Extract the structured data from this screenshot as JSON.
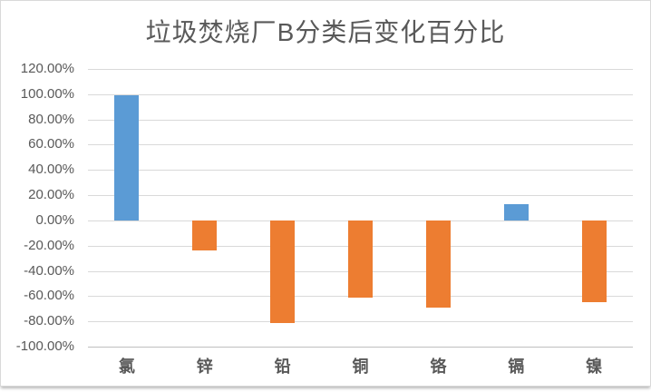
{
  "title": "垃圾焚烧厂B分类后变化百分比",
  "colors": {
    "positive_bar": "#5B9BD5",
    "negative_bar": "#ED7D31",
    "gridline": "#D9D9D9",
    "axis_line": "#BFBFBF",
    "text": "#595959",
    "frame_border": "#D9D9D9"
  },
  "chart_data": {
    "type": "bar",
    "title": "垃圾焚烧厂B分类后变化百分比",
    "categories": [
      "氯",
      "锌",
      "铅",
      "铜",
      "铬",
      "镉",
      "镍"
    ],
    "values": [
      99,
      -24,
      -81,
      -61,
      -69,
      13,
      -65
    ],
    "unit": "%",
    "xlabel": "",
    "ylabel": "",
    "ylim": [
      -100,
      120
    ],
    "ytick_step": 20,
    "ytick_labels": [
      "120.00%",
      "100.00%",
      "80.00%",
      "60.00%",
      "40.00%",
      "20.00%",
      "0.00%",
      "-20.00%",
      "-40.00%",
      "-60.00%",
      "-80.00%",
      "-100.00%"
    ],
    "grid": true,
    "legend": false,
    "bar_color_rule": "positive bars blue, negative bars orange"
  }
}
